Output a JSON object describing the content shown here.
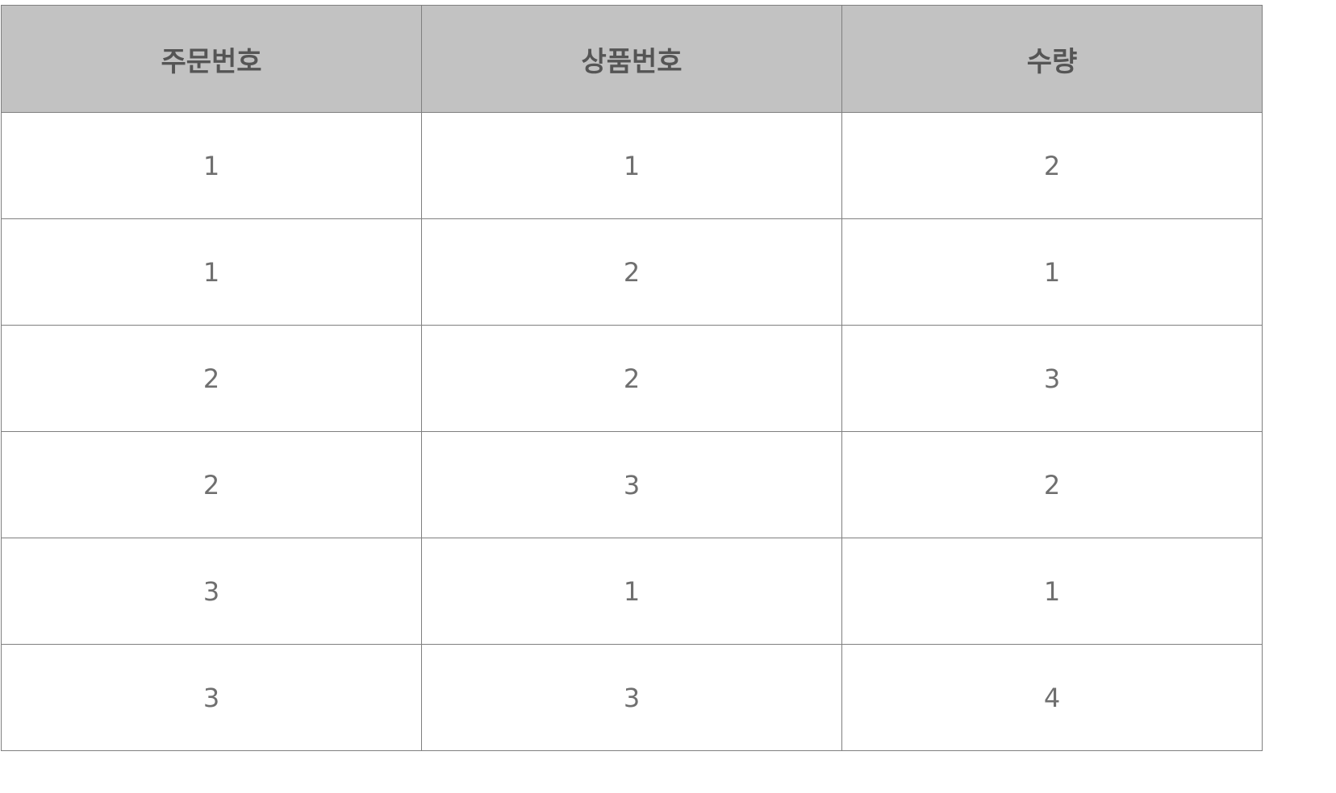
{
  "table": {
    "columns": [
      "주문번호",
      "상품번호",
      "수량"
    ],
    "rows": [
      [
        "1",
        "1",
        "2"
      ],
      [
        "1",
        "2",
        "1"
      ],
      [
        "2",
        "2",
        "3"
      ],
      [
        "2",
        "3",
        "2"
      ],
      [
        "3",
        "1",
        "1"
      ],
      [
        "3",
        "3",
        "4"
      ]
    ]
  },
  "colors": {
    "header_background": "#c2c2c2",
    "border": "#7f7f7f",
    "text": "#6f6f6f"
  }
}
